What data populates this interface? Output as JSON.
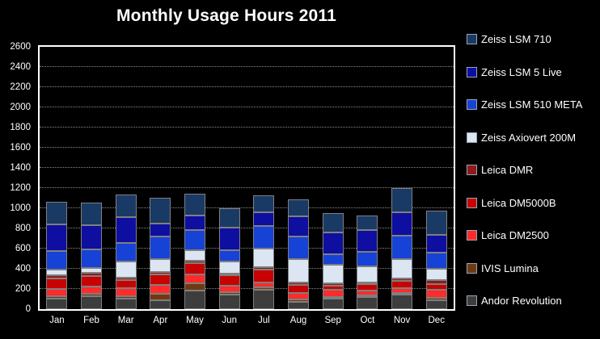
{
  "page": {
    "background": "#000000"
  },
  "chart_data": {
    "type": "bar",
    "stacked": true,
    "title": "Monthly Usage Hours 2011",
    "xlabel": "",
    "ylabel": "",
    "ylim": [
      0,
      2600
    ],
    "ytick_step": 200,
    "yticks": [
      0,
      200,
      400,
      600,
      800,
      1000,
      1200,
      1400,
      1600,
      1800,
      2000,
      2200,
      2400,
      2600
    ],
    "grid": "dotted horizontal gridlines, black plot background, white plot border",
    "legend_position": "right",
    "categories": [
      "Jan",
      "Feb",
      "Mar",
      "Apr",
      "May",
      "Jun",
      "Jul",
      "Aug",
      "Sep",
      "Oct",
      "Nov",
      "Dec"
    ],
    "stacking_note": "series listed top-of-stack first (legend order); last series sits on the baseline",
    "series": [
      {
        "name": "Zeiss LSM 710",
        "color": "#1a3a66",
        "values": [
          220,
          225,
          220,
          255,
          215,
          195,
          165,
          165,
          190,
          140,
          240,
          240
        ]
      },
      {
        "name": "Zeiss LSM 5 Live",
        "color": "#0e0ea0",
        "values": [
          265,
          240,
          255,
          130,
          145,
          225,
          135,
          200,
          215,
          215,
          230,
          175
        ]
      },
      {
        "name": "Zeiss LSM 510 META",
        "color": "#1742d6",
        "values": [
          180,
          180,
          185,
          220,
          200,
          110,
          225,
          220,
          105,
          145,
          235,
          160
        ]
      },
      {
        "name": "Zeiss Axiovert 200M",
        "color": "#dce5f2",
        "values": [
          55,
          50,
          160,
          130,
          100,
          120,
          180,
          235,
          180,
          160,
          195,
          115
        ]
      },
      {
        "name": "Leica DMR",
        "color": "#8f1a1a",
        "values": [
          30,
          30,
          25,
          20,
          25,
          15,
          25,
          25,
          25,
          10,
          20,
          40
        ]
      },
      {
        "name": "Leica DM5000B",
        "color": "#c80202",
        "values": [
          100,
          100,
          80,
          100,
          110,
          105,
          125,
          80,
          40,
          65,
          75,
          55
        ]
      },
      {
        "name": "Leica DM2500",
        "color": "#ff2b2b",
        "values": [
          75,
          75,
          80,
          85,
          90,
          65,
          50,
          60,
          75,
          50,
          45,
          80
        ]
      },
      {
        "name": "IVIS Lumina",
        "color": "#6f3a12",
        "values": [
          25,
          25,
          25,
          60,
          75,
          25,
          25,
          20,
          15,
          10,
          15,
          25
        ]
      },
      {
        "name": "Andor Revolution",
        "color": "#3d3d3d",
        "values": [
          100,
          125,
          105,
          90,
          185,
          145,
          190,
          70,
          100,
          120,
          145,
          90
        ]
      }
    ],
    "colors": {
      "background": "#000000",
      "plot_border": "#ffffff",
      "segment_border": "#7f7f7f",
      "gridline": "#8a8a8a",
      "text": "#ffffff"
    }
  }
}
